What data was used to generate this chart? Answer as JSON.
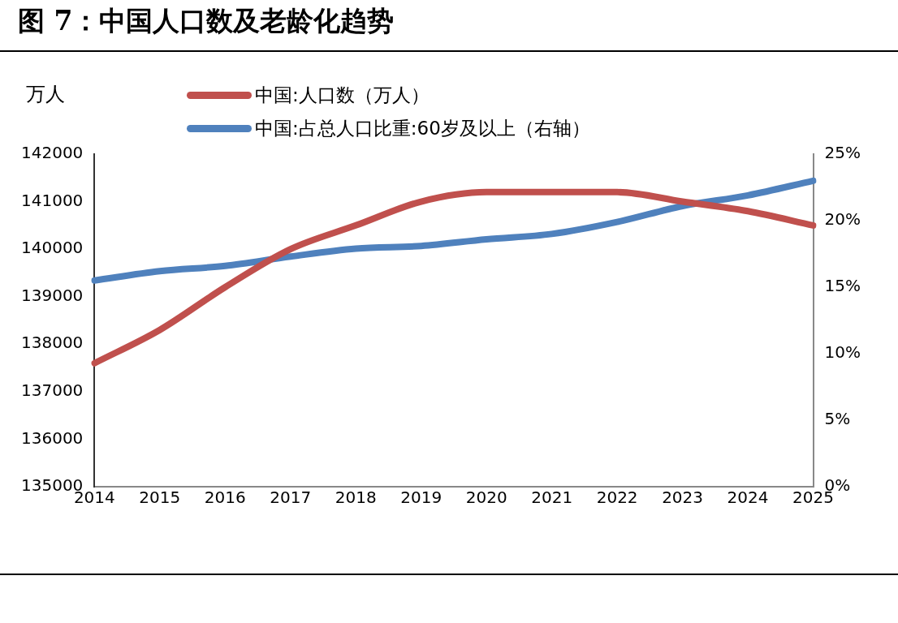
{
  "chart_data": {
    "type": "line",
    "title": "图 7：中国人口数及老龄化趋势",
    "ylabel": "万人",
    "categories": [
      "2014",
      "2015",
      "2016",
      "2017",
      "2018",
      "2019",
      "2020",
      "2021",
      "2022",
      "2023",
      "2024",
      "2025"
    ],
    "series": [
      {
        "name": "中国:人口数（万人）",
        "color": "#c0504d",
        "values": [
          137600,
          138300,
          139200,
          140000,
          140500,
          141000,
          141200,
          141200,
          141200,
          141000,
          140800,
          140500
        ]
      },
      {
        "name": "中国:占总人口比重:60岁及以上（右轴）",
        "color": "#4f81bd",
        "axis": "y2",
        "values": [
          15.5,
          16.2,
          16.6,
          17.3,
          17.9,
          18.1,
          18.6,
          19.0,
          19.9,
          21.1,
          21.9,
          23.0
        ]
      }
    ],
    "ylim": [
      135000,
      142000
    ],
    "yticks": [
      135000,
      136000,
      137000,
      138000,
      139000,
      140000,
      141000,
      142000
    ],
    "y2lim": [
      0,
      25
    ],
    "y2ticks": [
      {
        "value": 0,
        "label": "0%"
      },
      {
        "value": 5,
        "label": "5%"
      },
      {
        "value": 10,
        "label": "10%"
      },
      {
        "value": 15,
        "label": "15%"
      },
      {
        "value": 20,
        "label": "20%"
      },
      {
        "value": 25,
        "label": "25%"
      }
    ],
    "grid": false,
    "legend": "top",
    "marker": "none",
    "line_style": "solid"
  }
}
